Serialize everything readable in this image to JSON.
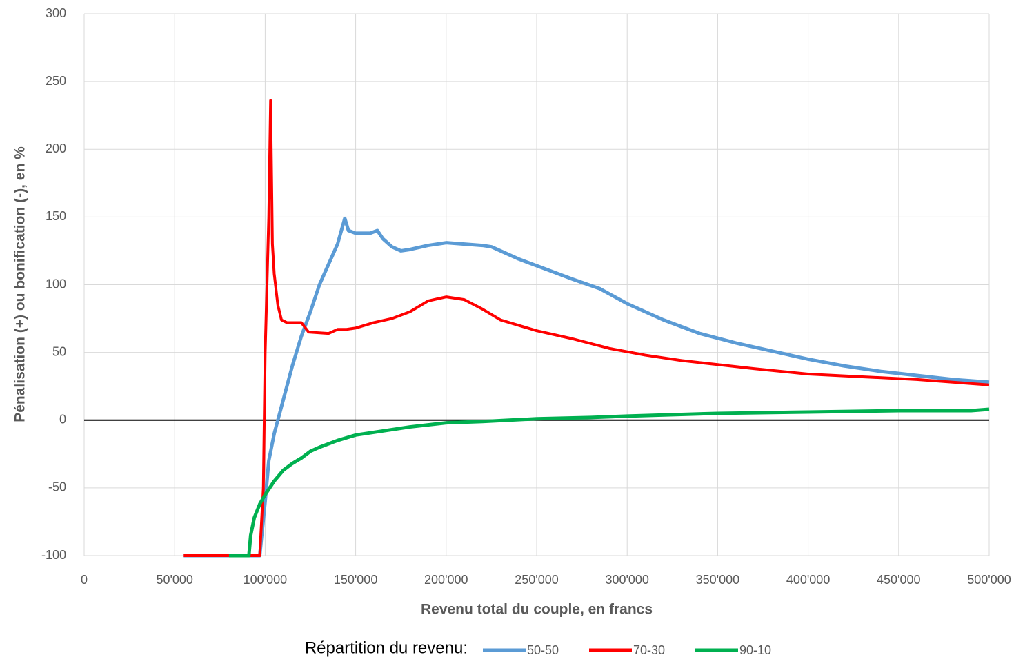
{
  "chart_data": {
    "type": "line",
    "xlabel": "Revenu total du couple, en francs",
    "ylabel": "Pénalisation (+) ou bonification (-), en %",
    "legend_title": "Répartition du revenu:",
    "xlim": [
      0,
      500000
    ],
    "xticks": [
      0,
      {
        "value": 50000,
        "label": "50'000"
      },
      {
        "value": 100000,
        "label": "100'000"
      },
      {
        "value": 150000,
        "label": "150'000"
      },
      {
        "value": 200000,
        "label": "200'000"
      },
      {
        "value": 250000,
        "label": "250'000"
      },
      {
        "value": 300000,
        "label": "300'000"
      },
      {
        "value": 350000,
        "label": "350'000"
      },
      {
        "value": 400000,
        "label": "400'000"
      },
      {
        "value": 450000,
        "label": "450'000"
      },
      {
        "value": 500000,
        "label": "500'000"
      }
    ],
    "ylim": [
      -100,
      300
    ],
    "yticks": [
      -100,
      -50,
      0,
      50,
      100,
      150,
      200,
      250,
      300
    ],
    "grid": true,
    "legend": "bottom",
    "series": [
      {
        "name": "50-50",
        "color": "#5b9bd5",
        "x": [
          55000,
          97000,
          100000,
          102000,
          105000,
          107000,
          110000,
          115000,
          120000,
          125000,
          130000,
          135000,
          140000,
          144000,
          146000,
          150000,
          158000,
          162000,
          165000,
          170000,
          175000,
          180000,
          190000,
          200000,
          210000,
          220000,
          225000,
          240000,
          250000,
          260000,
          270000,
          285000,
          300000,
          320000,
          340000,
          360000,
          380000,
          400000,
          420000,
          440000,
          460000,
          480000,
          500000
        ],
        "values": [
          -100,
          -100,
          -60,
          -30,
          -10,
          0,
          15,
          40,
          62,
          80,
          100,
          115,
          130,
          149,
          140,
          138,
          138,
          140,
          134,
          128,
          125,
          126,
          129,
          131,
          130,
          129,
          128,
          119,
          114,
          109,
          104,
          97,
          86,
          74,
          64,
          57,
          51,
          45,
          40,
          36,
          33,
          30,
          28
        ]
      },
      {
        "name": "70-30",
        "color": "#ff0000",
        "x": [
          55000,
          97000,
          99000,
          100000,
          102000,
          103000,
          104000,
          105000,
          107000,
          109000,
          112000,
          120000,
          124000,
          135000,
          140000,
          145000,
          150000,
          160000,
          170000,
          180000,
          190000,
          200000,
          210000,
          220000,
          230000,
          250000,
          270000,
          290000,
          310000,
          330000,
          350000,
          370000,
          400000,
          430000,
          460000,
          500000
        ],
        "values": [
          -100,
          -100,
          -50,
          50,
          150,
          236,
          130,
          108,
          85,
          74,
          72,
          72,
          65,
          64,
          67,
          67,
          68,
          72,
          75,
          80,
          88,
          91,
          89,
          82,
          74,
          66,
          60,
          53,
          48,
          44,
          41,
          38,
          34,
          32,
          30,
          26
        ]
      },
      {
        "name": "90-10",
        "color": "#00b050",
        "x": [
          80000,
          91000,
          92000,
          94000,
          97000,
          100000,
          105000,
          110000,
          115000,
          120000,
          125000,
          130000,
          140000,
          150000,
          165000,
          180000,
          200000,
          220000,
          250000,
          280000,
          300000,
          350000,
          400000,
          450000,
          490000,
          500000
        ],
        "values": [
          -100,
          -100,
          -85,
          -72,
          -62,
          -55,
          -45,
          -37,
          -32,
          -28,
          -23,
          -20,
          -15,
          -11,
          -8,
          -5,
          -2,
          -1,
          1,
          2,
          3,
          5,
          6,
          7,
          7,
          8
        ]
      }
    ]
  }
}
